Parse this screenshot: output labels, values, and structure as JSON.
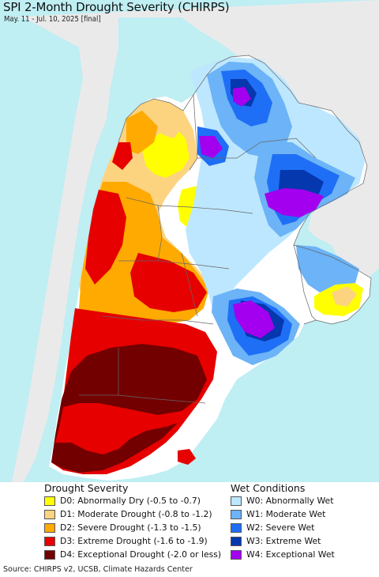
{
  "map": {
    "title": "SPI 2-Month Drought Severity (CHIRPS)",
    "subtitle": "May. 11 - Jul. 10, 2025 [final]",
    "colors": {
      "ocean": "#bfeef3",
      "land_outside": "#ebeaea",
      "no_anomaly": "#ffffff",
      "border": "#666666"
    }
  },
  "legend": {
    "drought_heading": "Drought Severity",
    "wet_heading": "Wet Conditions",
    "drought_items": [
      {
        "label": "D0: Abnormally Dry (-0.5 to -0.7)",
        "color": "#ffff00"
      },
      {
        "label": "D1: Moderate Drought (-0.8 to -1.2)",
        "color": "#fcd37f"
      },
      {
        "label": "D2: Severe Drought (-1.3 to -1.5)",
        "color": "#ffaa00"
      },
      {
        "label": "D3: Extreme Drought (-1.6 to -1.9)",
        "color": "#e60000"
      },
      {
        "label": "D4: Exceptional Drought (-2.0 or less)",
        "color": "#730000"
      }
    ],
    "wet_items": [
      {
        "label": "W0: Abnormally Wet",
        "color": "#bde7ff"
      },
      {
        "label": "W1: Moderate Wet",
        "color": "#6cb3f7"
      },
      {
        "label": "W2: Severe Wet",
        "color": "#1e6ff5"
      },
      {
        "label": "W3: Extreme Wet",
        "color": "#0537ae"
      },
      {
        "label": "W4: Exceptional Wet",
        "color": "#a300f0"
      }
    ]
  },
  "footer": {
    "source": "Source: CHIRPS v2, UCSB, Climate Hazards Center"
  }
}
